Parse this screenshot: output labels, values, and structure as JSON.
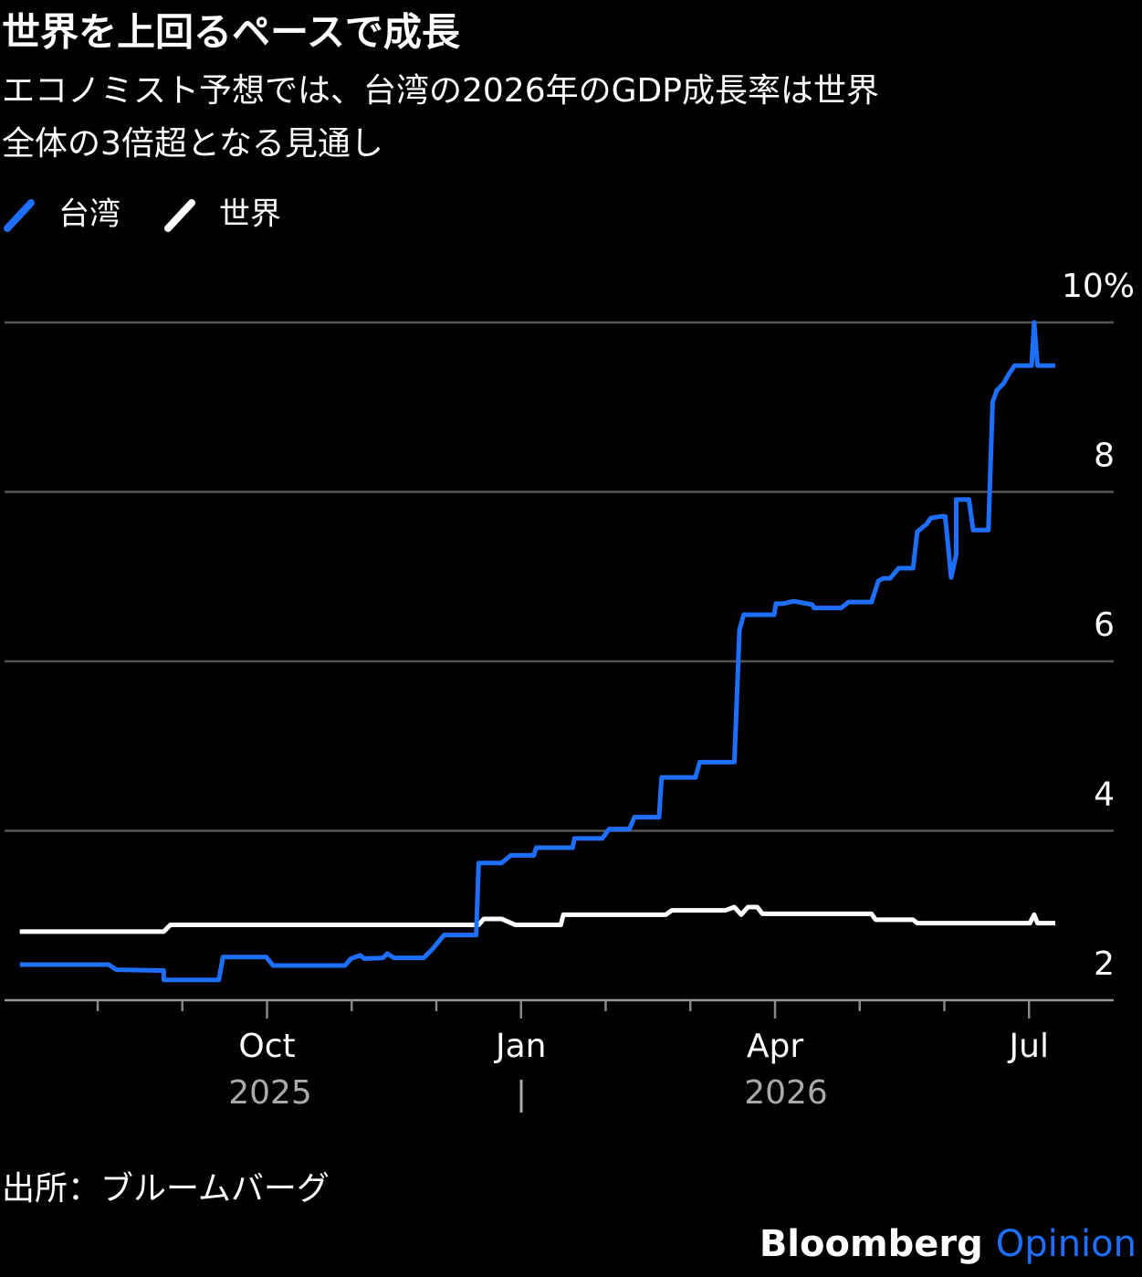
{
  "chart_data": {
    "type": "line",
    "title": "世界を上回るペースで成長",
    "subtitle": [
      "エコノミスト予想では、台湾の2026年のGDP成長率は世界",
      "全体の3倍超となる見通し"
    ],
    "source": "出所：ブルームバーグ",
    "logo": {
      "brand": "Bloomberg",
      "product": "Opinion"
    },
    "year_labels": [
      "2025",
      "2026"
    ],
    "xlim": [
      -0.1,
      13
    ],
    "xticks": [
      {
        "value": 3,
        "label": "Oct"
      },
      {
        "value": 6,
        "label": "Jan"
      },
      {
        "value": 9,
        "label": "Apr"
      },
      {
        "value": 12,
        "label": "Jul"
      }
    ],
    "xminorticks": [
      1,
      2,
      4,
      5,
      7,
      8,
      10,
      11
    ],
    "ylim": [
      2,
      10
    ],
    "yticks": [
      2,
      4,
      6,
      8,
      {
        "value": 10,
        "label": "10%"
      }
    ],
    "grid": true,
    "legend": "top-left",
    "series": [
      {
        "name": "台湾",
        "color": "#1f6fff",
        "x": [
          0.08,
          1.13,
          1.22,
          1.78,
          1.78,
          2.43,
          2.48,
          2.99,
          3.07,
          3.92,
          3.99,
          4.1,
          4.15,
          4.37,
          4.42,
          4.5,
          4.85,
          4.96,
          5.09,
          5.47,
          5.5,
          5.77,
          5.88,
          6.15,
          6.18,
          6.61,
          6.63,
          6.96,
          7.04,
          7.28,
          7.34,
          7.63,
          7.66,
          8.06,
          8.11,
          8.52,
          8.58,
          8.63,
          8.99,
          9.01,
          9.09,
          9.22,
          9.44,
          9.46,
          9.78,
          9.87,
          10.14,
          10.22,
          10.28,
          10.36,
          10.46,
          10.63,
          10.68,
          10.79,
          10.84,
          10.95,
          11.01,
          11.08,
          11.14,
          11.14,
          11.29,
          11.34,
          11.52,
          11.57,
          11.62,
          11.7,
          11.76,
          11.83,
          12.03,
          12.06,
          12.1,
          12.31
        ],
        "values": [
          2.42,
          2.42,
          2.36,
          2.35,
          2.24,
          2.24,
          2.51,
          2.51,
          2.41,
          2.41,
          2.49,
          2.53,
          2.49,
          2.5,
          2.55,
          2.5,
          2.5,
          2.61,
          2.77,
          2.77,
          3.62,
          3.62,
          3.71,
          3.71,
          3.8,
          3.8,
          3.91,
          3.91,
          4.02,
          4.02,
          4.16,
          4.16,
          4.63,
          4.63,
          4.81,
          4.81,
          6.37,
          6.55,
          6.55,
          6.68,
          6.68,
          6.71,
          6.67,
          6.63,
          6.63,
          6.7,
          6.7,
          6.95,
          6.98,
          6.98,
          7.1,
          7.1,
          7.53,
          7.62,
          7.69,
          7.71,
          7.71,
          6.99,
          7.26,
          7.91,
          7.91,
          7.55,
          7.55,
          9.06,
          9.2,
          9.28,
          9.39,
          9.49,
          9.49,
          10.0,
          9.49,
          9.49
        ]
      },
      {
        "name": "世界",
        "color": "#ffffff",
        "x": [
          0.08,
          1.78,
          1.86,
          5.5,
          5.56,
          5.77,
          5.93,
          6.47,
          6.5,
          7.71,
          7.78,
          8.41,
          8.52,
          8.6,
          8.68,
          8.79,
          8.85,
          10.14,
          10.19,
          10.63,
          10.68,
          12.01,
          12.06,
          12.1,
          12.31
        ],
        "values": [
          2.81,
          2.81,
          2.89,
          2.89,
          2.96,
          2.96,
          2.89,
          2.89,
          3.01,
          3.01,
          3.06,
          3.06,
          3.1,
          3.01,
          3.1,
          3.1,
          3.02,
          3.02,
          2.95,
          2.95,
          2.91,
          2.91,
          3.01,
          2.91,
          2.91
        ]
      }
    ]
  }
}
